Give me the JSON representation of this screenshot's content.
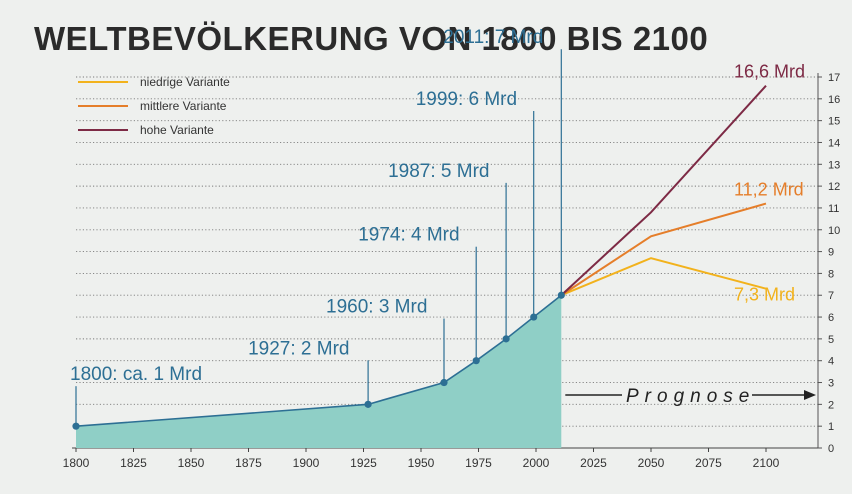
{
  "title": "WELTBEVÖLKERUNG VON 1800 BIS 2100",
  "colors": {
    "background": "#eef0ee",
    "area_fill": "#8fcfc6",
    "history_line": "#2d6f94",
    "annotation_text": "#2d6f94",
    "low": "#f2b21c",
    "medium": "#e57e2a",
    "high": "#7d2a45",
    "grid": "#7a7a7a",
    "axis_text": "#333333"
  },
  "chart_data": {
    "type": "line",
    "title": "WELTBEVÖLKERUNG VON 1800 BIS 2100",
    "xlim": [
      1800,
      2100
    ],
    "ylim": [
      0,
      17
    ],
    "x_ticks": [
      "1800",
      "1825",
      "1850",
      "1875",
      "1900",
      "1925",
      "1950",
      "1975",
      "2000",
      "2025",
      "2050",
      "2075",
      "2100"
    ],
    "y_ticks": [
      "0",
      "1",
      "2",
      "3",
      "4",
      "5",
      "6",
      "7",
      "8",
      "9",
      "10",
      "11",
      "12",
      "13",
      "14",
      "15",
      "16",
      "17"
    ],
    "grid": "horizontal dotted",
    "legend_position": "top-left",
    "history": {
      "x": [
        1800,
        1927,
        1960,
        1974,
        1987,
        1999,
        2011
      ],
      "y": [
        1,
        2,
        3,
        4,
        5,
        6,
        7
      ],
      "labels": [
        "1800: ca. 1 Mrd",
        "1927: 2 Mrd",
        "1960: 3 Mrd",
        "1974: 4 Mrd",
        "1987: 5 Mrd",
        "1999: 6 Mrd",
        "2011: 7 Mrd"
      ]
    },
    "series": [
      {
        "name": "niedrige Variante",
        "color": "#f2b21c",
        "x": [
          2011,
          2050,
          2100
        ],
        "y": [
          7,
          8.7,
          7.3
        ],
        "end_label": "7,3 Mrd"
      },
      {
        "name": "mittlere Variante",
        "color": "#e57e2a",
        "x": [
          2011,
          2050,
          2100
        ],
        "y": [
          7,
          9.7,
          11.2
        ],
        "end_label": "11,2 Mrd"
      },
      {
        "name": "hohe Variante",
        "color": "#7d2a45",
        "x": [
          2011,
          2050,
          2100
        ],
        "y": [
          7,
          10.8,
          16.6
        ],
        "end_label": "16,6 Mrd"
      }
    ],
    "annotations": [
      {
        "text": "Prognose",
        "x_from": 2011,
        "x_to": 2100,
        "y": 2.5
      }
    ]
  }
}
